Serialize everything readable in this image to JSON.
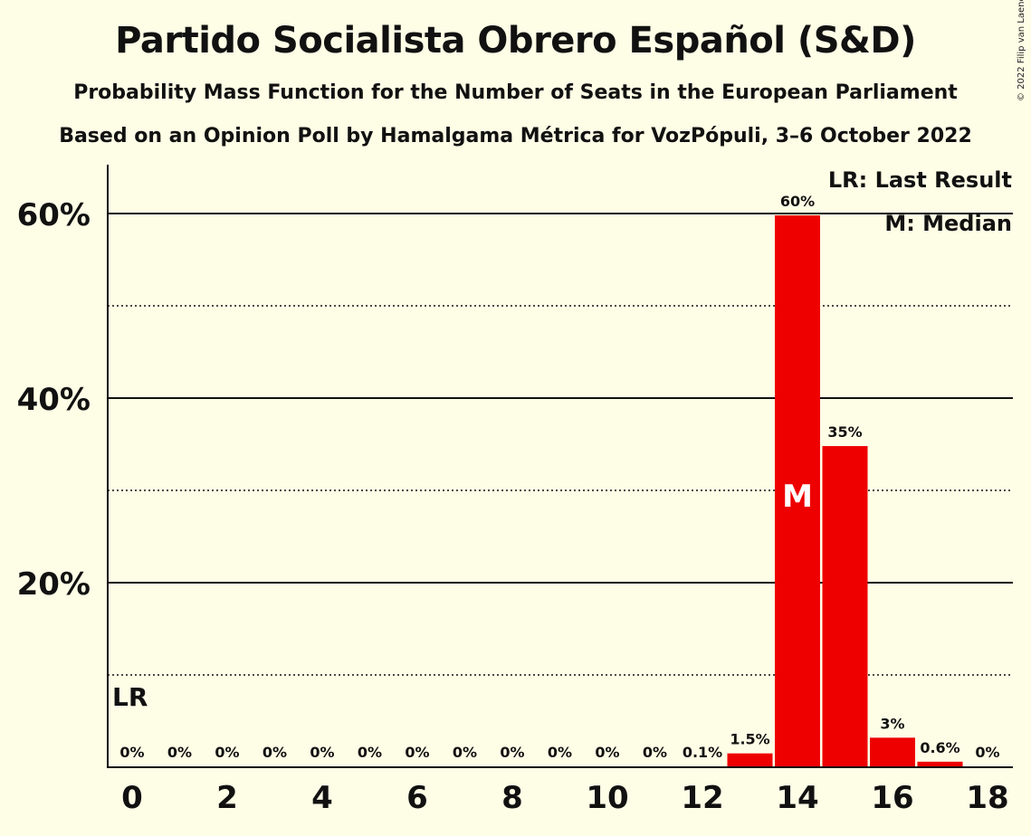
{
  "header": {
    "title": "Partido Socialista Obrero Español (S&D)",
    "subtitle": "Probability Mass Function for the Number of Seats in the European Parliament",
    "subtitle2": "Based on an Opinion Poll by Hamalgama Métrica for VozPópuli, 3–6 October 2022",
    "copyright": "© 2022 Filip van Laenen"
  },
  "legend": {
    "lr": "LR: Last Result",
    "m": "M: Median"
  },
  "colors": {
    "background": "#fefde6",
    "bar": "#ee0000",
    "text": "#111111"
  },
  "chart_data": {
    "type": "bar",
    "x": [
      0,
      1,
      2,
      3,
      4,
      5,
      6,
      7,
      8,
      9,
      10,
      11,
      12,
      13,
      14,
      15,
      16,
      17,
      18
    ],
    "values": [
      0,
      0,
      0,
      0,
      0,
      0,
      0,
      0,
      0,
      0,
      0,
      0,
      0.1,
      1.5,
      59.8,
      34.8,
      3.2,
      0.6,
      0
    ],
    "labels": [
      "0%",
      "0%",
      "0%",
      "0%",
      "0%",
      "0%",
      "0%",
      "0%",
      "0%",
      "0%",
      "0%",
      "0%",
      "0.1%",
      "1.5%",
      "60%",
      "35%",
      "3%",
      "0.6%",
      "0%"
    ],
    "xticks": [
      "0",
      "2",
      "4",
      "6",
      "8",
      "10",
      "12",
      "14",
      "16",
      "18"
    ],
    "yticks": [
      "20%",
      "40%",
      "60%"
    ],
    "ylim": [
      0,
      65
    ],
    "solid_grid": [
      20,
      40,
      60
    ],
    "dotted_grid": [
      10,
      30,
      50
    ],
    "last_result_seat": 0,
    "last_result_marker": "LR",
    "median_seat": 14,
    "median_marker": "M",
    "legend_position": "top-right"
  }
}
